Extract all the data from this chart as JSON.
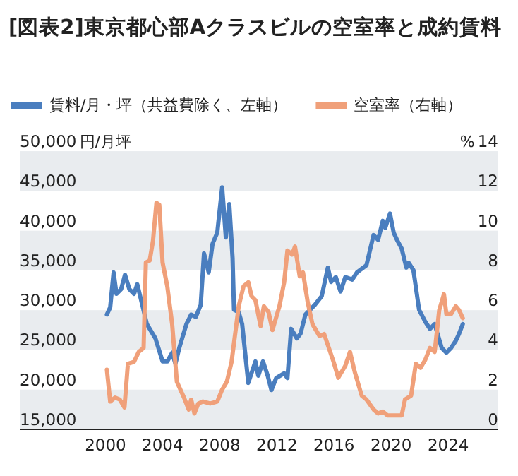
{
  "chart_data": {
    "type": "line",
    "title": "[図表2]東京都心部Aクラスビルの空室率と成約賃料",
    "ylabel": "円/月坪",
    "y2label": "%",
    "xlim": [
      1994,
      2027.5
    ],
    "xticks": [
      2000,
      2004,
      2008,
      2012,
      2016,
      2020,
      2024
    ],
    "ylim": [
      13750,
      50000
    ],
    "yticks": [
      {
        "value": 15000,
        "label": "15,000"
      },
      {
        "value": 20000,
        "label": "20,000"
      },
      {
        "value": 25000,
        "label": "25,000"
      },
      {
        "value": 30000,
        "label": "30,000"
      },
      {
        "value": 35000,
        "label": "35,000"
      },
      {
        "value": 40000,
        "label": "40,000"
      },
      {
        "value": 45000,
        "label": "45,000"
      },
      {
        "value": 50000,
        "label": "50,000"
      }
    ],
    "y2lim": [
      -0.5,
      14
    ],
    "y2ticks": [
      0,
      2,
      4,
      6,
      8,
      10,
      12,
      14
    ],
    "bands": [
      {
        "axis": "y",
        "from": 43750,
        "to": 48750,
        "color": "#e9ecef"
      },
      {
        "axis": "y",
        "from": 33750,
        "to": 38750,
        "color": "#e9ecef"
      },
      {
        "axis": "y",
        "from": 23750,
        "to": 28750,
        "color": "#e9ecef"
      },
      {
        "axis": "y",
        "from": 13750,
        "to": 18750,
        "color": "#e9ecef"
      }
    ],
    "legend": "top left",
    "line_style": "solid",
    "marker": "none",
    "series": [
      {
        "name": "賃料/月・坪（共益費除く、左軸）",
        "color": "#4a7ebf",
        "axis": "y",
        "x": [
          2000.1,
          2000.33,
          2000.57,
          2000.77,
          2001.1,
          2001.37,
          2001.67,
          2002.0,
          2002.23,
          2002.5,
          2002.9,
          2003.5,
          2004.0,
          2004.33,
          2004.67,
          2004.9,
          2005.17,
          2005.67,
          2006.0,
          2006.33,
          2006.67,
          2006.9,
          2007.23,
          2007.5,
          2007.83,
          2008.17,
          2008.43,
          2008.67,
          2008.9,
          2009.0,
          2009.33,
          2009.57,
          2010.0,
          2010.5,
          2010.7,
          2011.03,
          2011.36,
          2011.62,
          2011.95,
          2012.51,
          2012.74,
          2013.0,
          2013.4,
          2013.66,
          2014.0,
          2014.65,
          2015.14,
          2015.57,
          2015.8,
          2016.13,
          2016.46,
          2016.79,
          2017.28,
          2017.61,
          2018.27,
          2018.77,
          2019.09,
          2019.42,
          2019.59,
          2019.92,
          2020.18,
          2020.41,
          2020.74,
          2021.07,
          2021.23,
          2021.56,
          2021.96,
          2022.39,
          2022.72,
          2023.05,
          2023.54,
          2023.87,
          2024.2,
          2024.53,
          2024.76,
          2025.02
        ],
        "values": [
          28200,
          29100,
          33500,
          30800,
          31400,
          33200,
          31400,
          30800,
          32000,
          30000,
          27000,
          25200,
          22300,
          22300,
          23400,
          22000,
          24000,
          27000,
          28200,
          27900,
          29400,
          35900,
          33500,
          37100,
          38500,
          44200,
          37900,
          42100,
          35300,
          28800,
          28500,
          27000,
          19600,
          22300,
          20500,
          22300,
          20500,
          18700,
          20200,
          20800,
          20200,
          26400,
          25200,
          25800,
          28200,
          29400,
          30500,
          34100,
          32300,
          32900,
          31100,
          32900,
          32600,
          33500,
          34400,
          38200,
          37600,
          40000,
          39100,
          40900,
          38500,
          37600,
          36500,
          34100,
          34700,
          33800,
          28800,
          27300,
          26400,
          27000,
          24000,
          23400,
          24000,
          24900,
          25800,
          27000
        ]
      },
      {
        "name": "空室率（右軸）",
        "color": "#f0a07a",
        "axis": "y2",
        "x": [
          2000.1,
          2000.33,
          2000.67,
          2001.0,
          2001.33,
          2001.57,
          2002.0,
          2002.33,
          2002.67,
          2002.83,
          2003.1,
          2003.33,
          2003.57,
          2003.77,
          2004.0,
          2004.33,
          2004.67,
          2005.0,
          2005.5,
          2005.83,
          2006.0,
          2006.23,
          2006.5,
          2006.83,
          2007.33,
          2007.83,
          2008.17,
          2008.5,
          2008.83,
          2009.33,
          2009.67,
          2010.0,
          2010.23,
          2010.5,
          2010.86,
          2011.09,
          2011.42,
          2011.69,
          2012.18,
          2012.51,
          2012.74,
          2013.07,
          2013.27,
          2013.6,
          2013.83,
          2014.16,
          2014.49,
          2014.98,
          2015.31,
          2015.64,
          2015.97,
          2016.3,
          2016.79,
          2017.12,
          2017.45,
          2017.94,
          2018.27,
          2018.77,
          2019.09,
          2019.42,
          2019.75,
          2020.24,
          2020.74,
          2020.97,
          2021.4,
          2021.73,
          2022.06,
          2022.39,
          2022.72,
          2023.05,
          2023.37,
          2023.7,
          2023.87,
          2024.2,
          2024.53,
          2024.76,
          2025.02
        ],
        "values": [
          2.5,
          0.9,
          1.1,
          1.0,
          0.6,
          2.8,
          2.9,
          3.4,
          3.6,
          7.9,
          8.0,
          9.0,
          10.9,
          10.8,
          7.9,
          6.7,
          4.8,
          1.9,
          1.1,
          0.5,
          1.0,
          0.3,
          0.8,
          0.9,
          0.8,
          0.9,
          1.5,
          1.9,
          2.9,
          5.7,
          6.7,
          6.9,
          6.2,
          6.0,
          4.7,
          5.7,
          5.4,
          4.5,
          5.7,
          6.9,
          8.5,
          8.3,
          8.7,
          7.2,
          7.4,
          5.9,
          4.8,
          4.2,
          4.3,
          3.6,
          2.9,
          2.1,
          2.7,
          3.4,
          2.4,
          1.2,
          1.0,
          0.5,
          0.3,
          0.4,
          0.2,
          0.2,
          0.2,
          1.0,
          1.2,
          2.8,
          2.6,
          3.0,
          3.6,
          3.4,
          5.5,
          6.3,
          5.3,
          5.3,
          5.7,
          5.5,
          5.1
        ]
      }
    ]
  }
}
